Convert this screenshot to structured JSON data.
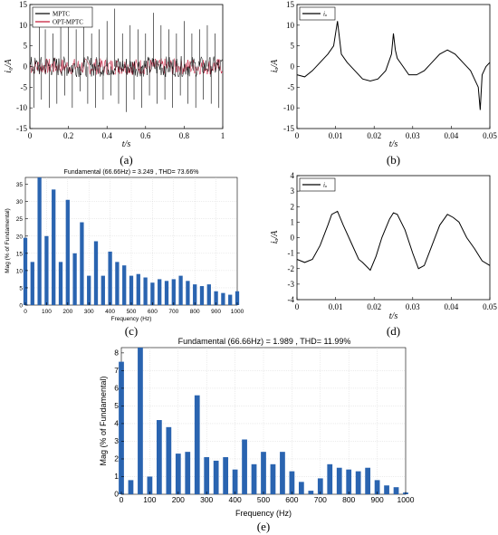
{
  "chart_data": [
    {
      "id": "a",
      "type": "line",
      "panel_label": "(a)",
      "xlabel": "t/s",
      "ylabel": "i₀/A",
      "xlim": [
        0,
        1
      ],
      "ylim": [
        -15,
        15
      ],
      "xticks": [
        "0",
        "0.2",
        "0.4",
        "0.6",
        "0.8",
        "1"
      ],
      "yticks": [
        "-15",
        "-10",
        "-5",
        "0",
        "5",
        "10",
        "15"
      ],
      "grid": false,
      "legend_position": "top-left",
      "series": [
        {
          "name": "MPTC",
          "color": "#000000",
          "band": [
            -2.5,
            2.5
          ],
          "spikes": [
            [
              0.02,
              -10
            ],
            [
              0.05,
              11
            ],
            [
              0.06,
              -8
            ],
            [
              0.08,
              9
            ],
            [
              0.1,
              -10
            ],
            [
              0.12,
              8
            ],
            [
              0.14,
              -9
            ],
            [
              0.16,
              12
            ],
            [
              0.18,
              -7
            ],
            [
              0.2,
              10
            ],
            [
              0.22,
              -10
            ],
            [
              0.24,
              9
            ],
            [
              0.26,
              -6
            ],
            [
              0.28,
              13
            ],
            [
              0.3,
              -9
            ],
            [
              0.32,
              8
            ],
            [
              0.34,
              -10
            ],
            [
              0.36,
              9
            ],
            [
              0.38,
              -8
            ],
            [
              0.4,
              11
            ],
            [
              0.42,
              -7
            ],
            [
              0.44,
              14
            ],
            [
              0.46,
              -9
            ],
            [
              0.48,
              8
            ],
            [
              0.5,
              -11
            ],
            [
              0.52,
              10
            ],
            [
              0.54,
              -8
            ],
            [
              0.56,
              9
            ],
            [
              0.58,
              -10
            ],
            [
              0.6,
              8
            ],
            [
              0.62,
              -7
            ],
            [
              0.64,
              13
            ],
            [
              0.66,
              -9
            ],
            [
              0.68,
              10
            ],
            [
              0.7,
              -8
            ],
            [
              0.72,
              9
            ],
            [
              0.74,
              -10
            ],
            [
              0.76,
              8
            ],
            [
              0.78,
              -7
            ],
            [
              0.8,
              11
            ],
            [
              0.82,
              -9
            ],
            [
              0.84,
              8
            ],
            [
              0.86,
              -10
            ],
            [
              0.88,
              9
            ],
            [
              0.9,
              -8
            ],
            [
              0.92,
              10
            ],
            [
              0.94,
              -9
            ],
            [
              0.96,
              8
            ],
            [
              0.98,
              -10
            ]
          ]
        },
        {
          "name": "OPT-MPTC",
          "color": "#c01030",
          "band": [
            -2,
            2
          ],
          "spikes": []
        }
      ]
    },
    {
      "id": "b",
      "type": "line",
      "panel_label": "(b)",
      "xlabel": "t/s",
      "ylabel": "iₐ/A",
      "xlim": [
        0,
        0.05
      ],
      "ylim": [
        -15,
        15
      ],
      "xticks": [
        "0",
        "0.01",
        "0.02",
        "0.03",
        "0.04",
        "0.05"
      ],
      "yticks": [
        "-15",
        "-10",
        "-5",
        "0",
        "5",
        "10",
        "15"
      ],
      "grid": false,
      "legend_position": "top-left",
      "legend": [
        "iₐ"
      ],
      "series": [
        {
          "name": "iₐ",
          "color": "#000000",
          "x": [
            0,
            0.002,
            0.004,
            0.006,
            0.008,
            0.0095,
            0.0105,
            0.0115,
            0.013,
            0.015,
            0.017,
            0.019,
            0.021,
            0.023,
            0.0245,
            0.025,
            0.0255,
            0.026,
            0.0275,
            0.029,
            0.031,
            0.033,
            0.035,
            0.037,
            0.039,
            0.041,
            0.043,
            0.045,
            0.046,
            0.047,
            0.0475,
            0.048,
            0.049,
            0.05
          ],
          "y": [
            -2,
            -2.5,
            -1,
            1,
            3,
            5,
            11,
            3,
            1,
            -1,
            -3,
            -3.5,
            -3,
            -1,
            3,
            8,
            4,
            2,
            0,
            -2,
            -2,
            -1,
            1,
            3,
            4,
            3,
            1,
            -1,
            -3,
            -5,
            -10.5,
            -2,
            0,
            1
          ]
        }
      ]
    },
    {
      "id": "c",
      "type": "bar",
      "panel_label": "(c)",
      "title": "Fundamental (66.66Hz) = 3.249 , THD= 73.66%",
      "xlabel": "Frequency (Hz)",
      "ylabel": "Mag (% of Fundamental)",
      "xlim": [
        0,
        1000
      ],
      "ylim": [
        0,
        37
      ],
      "xticks": [
        "0",
        "100",
        "200",
        "300",
        "400",
        "500",
        "600",
        "700",
        "800",
        "900",
        "1000"
      ],
      "yticks": [
        "0",
        "5",
        "10",
        "15",
        "20",
        "25",
        "30",
        "35"
      ],
      "grid": true,
      "bar_color": "#2a64b0",
      "x": [
        0,
        33.3,
        66.7,
        100,
        133.3,
        166.7,
        200,
        233.3,
        266.7,
        300,
        333.3,
        366.7,
        400,
        433.3,
        466.7,
        500,
        533.3,
        566.7,
        600,
        633.3,
        666.7,
        700,
        733.3,
        766.7,
        800,
        833.3,
        866.7,
        900,
        933.3,
        966.7,
        1000
      ],
      "values": [
        19.5,
        12.5,
        37,
        20,
        33.5,
        12.5,
        30.5,
        15,
        24,
        8.5,
        18.5,
        8.5,
        15.5,
        12.5,
        11.5,
        8.5,
        9,
        8,
        6.5,
        7.5,
        7,
        7.5,
        8.5,
        7,
        6,
        5.5,
        6,
        4,
        3.5,
        3,
        4
      ]
    },
    {
      "id": "d",
      "type": "line",
      "panel_label": "(d)",
      "xlabel": "t/s",
      "ylabel": "iₐ/A",
      "xlim": [
        0,
        0.05
      ],
      "ylim": [
        -4,
        4
      ],
      "xticks": [
        "0",
        "0.01",
        "0.02",
        "0.03",
        "0.04",
        "0.05"
      ],
      "yticks": [
        "-4",
        "-3",
        "-2",
        "-1",
        "0",
        "1",
        "2",
        "3",
        "4"
      ],
      "grid": false,
      "legend_position": "top-left",
      "legend": [
        "iₐ"
      ],
      "series": [
        {
          "name": "iₐ",
          "color": "#000000",
          "x": [
            0,
            0.002,
            0.004,
            0.006,
            0.008,
            0.009,
            0.0105,
            0.012,
            0.014,
            0.016,
            0.017,
            0.019,
            0.0205,
            0.022,
            0.024,
            0.025,
            0.026,
            0.028,
            0.03,
            0.0315,
            0.033,
            0.035,
            0.037,
            0.039,
            0.0405,
            0.042,
            0.044,
            0.046,
            0.048,
            0.05
          ],
          "y": [
            -1.4,
            -1.6,
            -1.4,
            -0.5,
            0.8,
            1.5,
            1.7,
            0.8,
            -0.3,
            -1.4,
            -1.6,
            -2.1,
            -1.2,
            0,
            1.2,
            1.6,
            1.5,
            0.5,
            -1,
            -2,
            -1.8,
            -0.5,
            0.8,
            1.5,
            1.3,
            1,
            0,
            -0.7,
            -1.5,
            -1.8
          ]
        }
      ]
    },
    {
      "id": "e",
      "type": "bar",
      "panel_label": "(e)",
      "title": "Fundamental (66.66Hz) = 1.989 , THD= 11.99%",
      "xlabel": "Frequency (Hz)",
      "ylabel": "Mag (% of Fundamental)",
      "xlim": [
        0,
        1000
      ],
      "ylim": [
        0,
        8.3
      ],
      "xticks": [
        "0",
        "100",
        "200",
        "300",
        "400",
        "500",
        "600",
        "700",
        "800",
        "900",
        "1000"
      ],
      "yticks": [
        "0",
        "1",
        "2",
        "3",
        "4",
        "5",
        "6",
        "7",
        "8"
      ],
      "grid": true,
      "bar_color": "#2a64b0",
      "x": [
        0,
        33.3,
        66.7,
        100,
        133.3,
        166.7,
        200,
        233.3,
        266.7,
        300,
        333.3,
        366.7,
        400,
        433.3,
        466.7,
        500,
        533.3,
        566.7,
        600,
        633.3,
        666.7,
        700,
        733.3,
        766.7,
        800,
        833.3,
        866.7,
        900,
        933.3,
        966.7,
        1000
      ],
      "values": [
        7.5,
        0.8,
        8.4,
        1,
        4.2,
        3.8,
        2.3,
        2.4,
        5.6,
        2.1,
        1.9,
        2.1,
        1.4,
        3.1,
        1.7,
        2.4,
        1.7,
        2.4,
        1.3,
        0.7,
        0.2,
        0.9,
        1.7,
        1.5,
        1.4,
        1.3,
        1.5,
        0.8,
        0.5,
        0.4,
        0.1
      ]
    }
  ]
}
